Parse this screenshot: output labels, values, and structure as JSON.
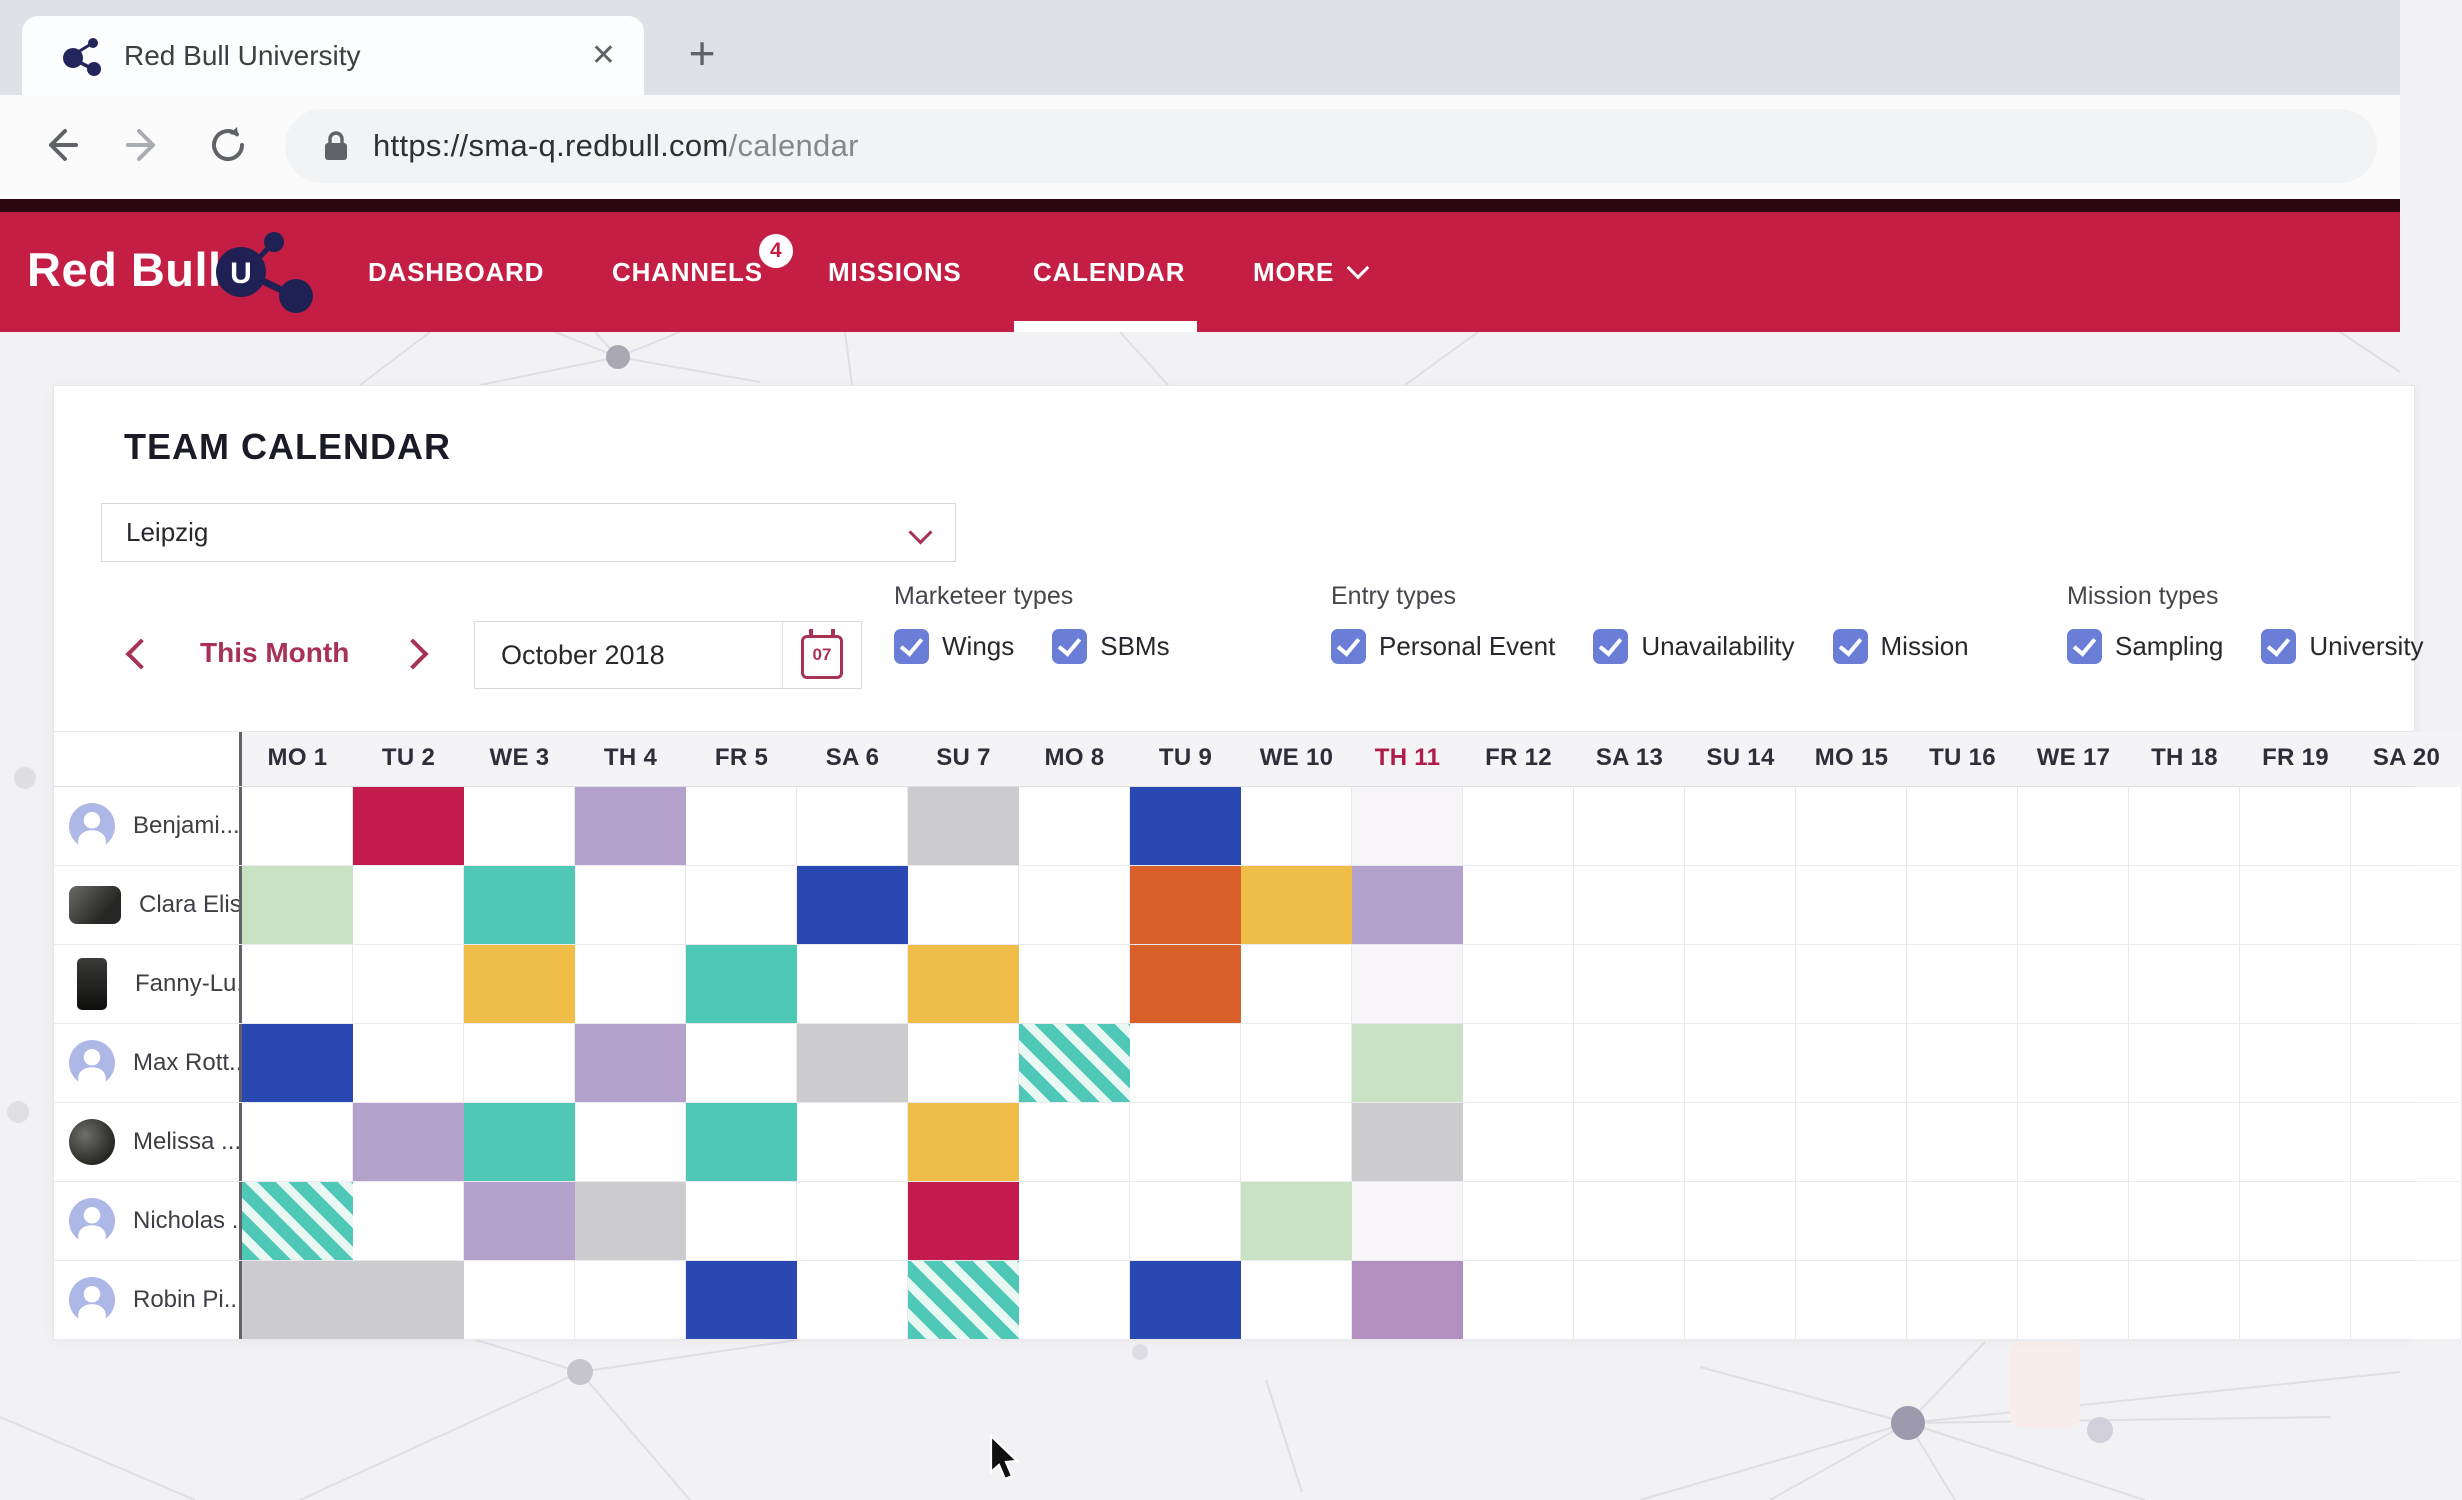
{
  "browser": {
    "tab_title": "Red Bull University",
    "url_domain": "https://sma-q.redbull.com",
    "url_path": "/calendar"
  },
  "nav": {
    "brand": "Red Bull",
    "brand_u": "U",
    "items": [
      {
        "label": "DASHBOARD"
      },
      {
        "label": "CHANNELS",
        "badge": "4"
      },
      {
        "label": "MISSIONS"
      },
      {
        "label": "CALENDAR",
        "active": true
      },
      {
        "label": "MORE"
      }
    ]
  },
  "calendar": {
    "title": "TEAM CALENDAR",
    "location_selected": "Leipzig",
    "month_nav_label": "This Month",
    "date_value": "October 2018",
    "date_icon_day": "07",
    "filter_groups": [
      {
        "label": "Marketeer types",
        "options": [
          {
            "label": "Wings",
            "checked": true
          },
          {
            "label": "SBMs",
            "checked": true
          }
        ]
      },
      {
        "label": "Entry types",
        "options": [
          {
            "label": "Personal Event",
            "checked": true
          },
          {
            "label": "Unavailability",
            "checked": true
          },
          {
            "label": "Mission",
            "checked": true
          }
        ]
      },
      {
        "label": "Mission types",
        "options": [
          {
            "label": "Sampling",
            "checked": true
          },
          {
            "label": "University",
            "checked": true
          }
        ]
      }
    ]
  },
  "grid": {
    "day_headers": [
      "MO 1",
      "TU 2",
      "WE 3",
      "TH 4",
      "FR 5",
      "SA 6",
      "SU 7",
      "MO 8",
      "TU 9",
      "WE 10",
      "TH 11",
      "FR 12",
      "SA 13",
      "SU 14",
      "MO 15",
      "TU 16",
      "WE 17",
      "TH 18",
      "FR 19",
      "SA 20"
    ],
    "today_index": 10,
    "today_label": "TH 11",
    "members": [
      {
        "name": "Benjami...",
        "avatar": "default",
        "events": [
          {
            "day": 1,
            "color": "crimson"
          },
          {
            "day": 3,
            "color": "lavender"
          },
          {
            "day": 6,
            "color": "gray"
          },
          {
            "day": 8,
            "color": "blue"
          }
        ]
      },
      {
        "name": "Clara Elis...",
        "avatar": "photo-wide",
        "events": [
          {
            "day": 0,
            "color": "lightgreen"
          },
          {
            "day": 2,
            "color": "teal"
          },
          {
            "day": 5,
            "color": "blue"
          },
          {
            "day": 8,
            "color": "orange"
          },
          {
            "day": 9,
            "color": "amber"
          },
          {
            "day": 10,
            "color": "lavender"
          }
        ]
      },
      {
        "name": "Fanny-Lu...",
        "avatar": "photo-tall",
        "events": [
          {
            "day": 2,
            "color": "amber"
          },
          {
            "day": 4,
            "color": "teal"
          },
          {
            "day": 6,
            "color": "amber"
          },
          {
            "day": 8,
            "color": "orange"
          }
        ]
      },
      {
        "name": "Max Rott...",
        "avatar": "default",
        "events": [
          {
            "day": 0,
            "color": "blue"
          },
          {
            "day": 3,
            "color": "lavender"
          },
          {
            "day": 5,
            "color": "gray"
          },
          {
            "day": 7,
            "color": "teal",
            "striped": true
          },
          {
            "day": 10,
            "color": "lightgreen"
          }
        ]
      },
      {
        "name": "Melissa ...",
        "avatar": "photo-round",
        "events": [
          {
            "day": 1,
            "color": "lavender"
          },
          {
            "day": 2,
            "color": "teal"
          },
          {
            "day": 4,
            "color": "teal"
          },
          {
            "day": 6,
            "color": "amber"
          },
          {
            "day": 10,
            "color": "gray"
          }
        ]
      },
      {
        "name": "Nicholas ...",
        "avatar": "default",
        "events": [
          {
            "day": 0,
            "color": "teal",
            "striped": true
          },
          {
            "day": 2,
            "color": "lavender"
          },
          {
            "day": 3,
            "color": "gray"
          },
          {
            "day": 6,
            "color": "crimson"
          },
          {
            "day": 9,
            "color": "lightgreen"
          }
        ]
      },
      {
        "name": "Robin Pi...",
        "avatar": "default",
        "events": [
          {
            "day": 0,
            "color": "gray",
            "span": 2
          },
          {
            "day": 4,
            "color": "blue"
          },
          {
            "day": 6,
            "color": "teal",
            "striped": true
          },
          {
            "day": 8,
            "color": "blue"
          },
          {
            "day": 10,
            "color": "purple"
          }
        ]
      }
    ]
  },
  "event_colors": {
    "crimson": "#C31B4B",
    "blue": "#2A48B2",
    "teal": "#4FC8B8",
    "amber": "#F0BD48",
    "orange": "#D9602B",
    "lavender": "#B5A2CC",
    "purple": "#B38FC0",
    "lightgreen": "#CAE2C4",
    "gray": "#CCCBCE",
    "stripe_gap": "#EAF8F3"
  },
  "brand_colors": {
    "nav_red": "#C51E45",
    "accent_maroon": "#A83253",
    "checkbox_blue": "#6B7ED7",
    "today_red": "#B01C4A"
  }
}
